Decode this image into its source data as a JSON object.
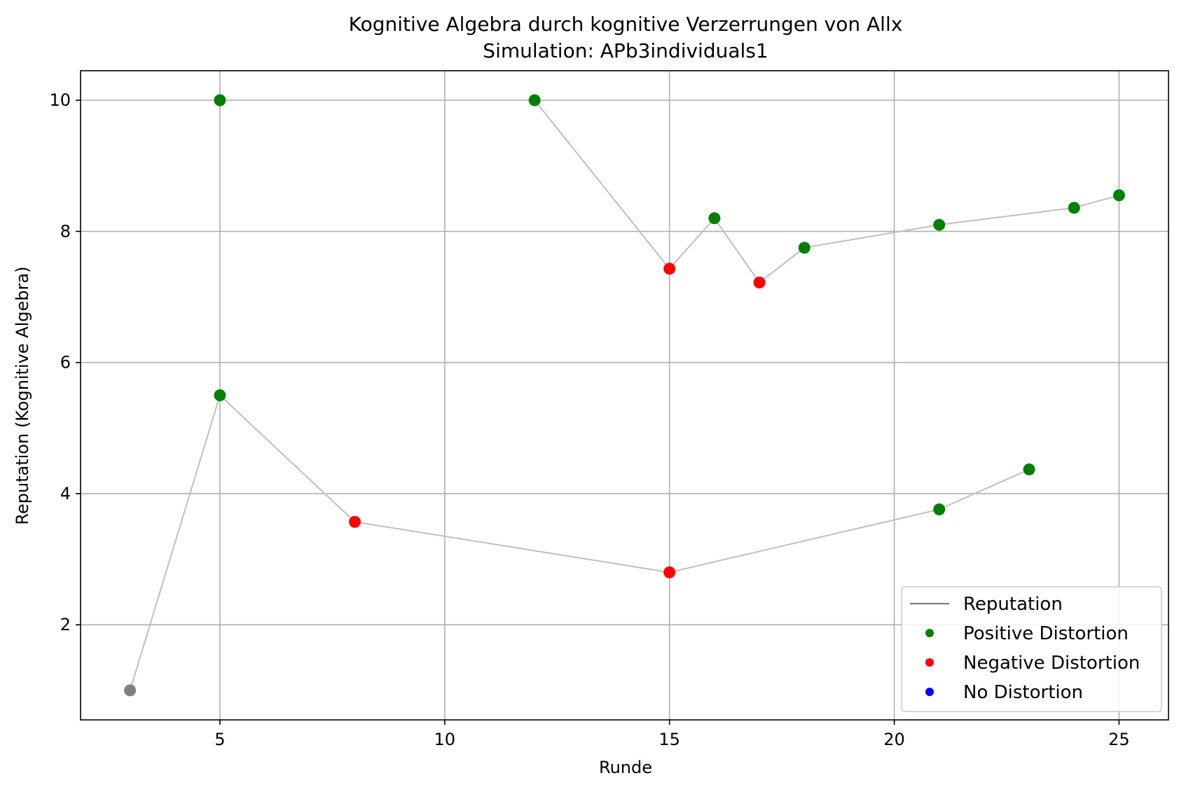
{
  "chart_data": {
    "type": "scatter",
    "title": "Kognitive Algebra durch kognitive Verzerrungen von Allx",
    "subtitle": "Simulation: APb3individuals1",
    "xlabel": "Runde",
    "ylabel": "Reputation (Kognitive Algebra)",
    "xlim": [
      1.9,
      26.1
    ],
    "ylim": [
      0.55,
      10.45
    ],
    "xticks": [
      5,
      10,
      15,
      20,
      25
    ],
    "yticks": [
      2,
      4,
      6,
      8,
      10
    ],
    "grid": true,
    "legend_position": "lower-right",
    "legend": [
      {
        "label": "Reputation",
        "kind": "line",
        "color": "#808080"
      },
      {
        "label": "Positive Distortion",
        "kind": "marker",
        "color": "#008000"
      },
      {
        "label": "Negative Distortion",
        "kind": "marker",
        "color": "#ff0000"
      },
      {
        "label": "No Distortion",
        "kind": "marker",
        "color": "#0000ff"
      }
    ],
    "line_color": "#bfbfbf",
    "lines": [
      {
        "points": [
          [
            3,
            1.0
          ],
          [
            5,
            5.5
          ],
          [
            8,
            3.57
          ],
          [
            15,
            2.8
          ],
          [
            21,
            3.76
          ],
          [
            23,
            4.37
          ]
        ]
      },
      {
        "points": [
          [
            5,
            10.0
          ],
          [
            12,
            10.0
          ],
          [
            15,
            7.43
          ],
          [
            16,
            8.2
          ],
          [
            17,
            7.22
          ],
          [
            18,
            7.75
          ],
          [
            21,
            8.1
          ],
          [
            24,
            8.36
          ],
          [
            25,
            8.55
          ]
        ]
      }
    ],
    "series": [
      {
        "name": "Positive Distortion",
        "color": "#008000",
        "points": [
          [
            5,
            5.5
          ],
          [
            21,
            3.76
          ],
          [
            23,
            4.37
          ],
          [
            5,
            10.0
          ],
          [
            12,
            10.0
          ],
          [
            16,
            8.2
          ],
          [
            18,
            7.75
          ],
          [
            21,
            8.1
          ],
          [
            24,
            8.36
          ],
          [
            25,
            8.55
          ]
        ]
      },
      {
        "name": "Negative Distortion",
        "color": "#ff0000",
        "points": [
          [
            8,
            3.57
          ],
          [
            15,
            2.8
          ],
          [
            15,
            7.43
          ],
          [
            17,
            7.22
          ]
        ]
      },
      {
        "name": "No Distortion",
        "color": "#0000ff",
        "points": []
      },
      {
        "name": "",
        "color": "#808080",
        "points": [
          [
            3,
            1.0
          ]
        ]
      }
    ]
  }
}
